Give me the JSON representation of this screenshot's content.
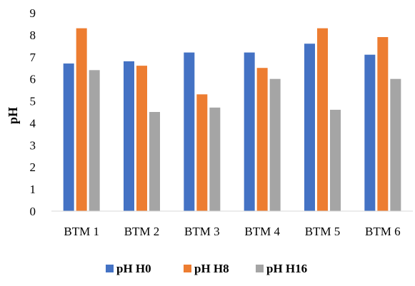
{
  "chart_data": {
    "type": "bar",
    "title": "",
    "xlabel": "",
    "ylabel": "pH",
    "ylim": [
      0,
      9
    ],
    "yticks": [
      0,
      1,
      2,
      3,
      4,
      5,
      6,
      7,
      8,
      9
    ],
    "grid": false,
    "legend_position": "bottom",
    "categories": [
      "BTM 1",
      "BTM 2",
      "BTM 3",
      "BTM 4",
      "BTM 5",
      "BTM 6"
    ],
    "series": [
      {
        "name": "pH H0",
        "color": "#4472C4",
        "values": [
          6.7,
          6.8,
          7.2,
          7.2,
          7.6,
          7.1
        ]
      },
      {
        "name": "pH H8",
        "color": "#ED7D31",
        "values": [
          8.3,
          6.6,
          5.3,
          6.5,
          8.3,
          7.9
        ]
      },
      {
        "name": "pH H16",
        "color": "#A5A5A5",
        "values": [
          6.4,
          4.5,
          4.7,
          6.0,
          4.6,
          6.0
        ]
      }
    ]
  }
}
